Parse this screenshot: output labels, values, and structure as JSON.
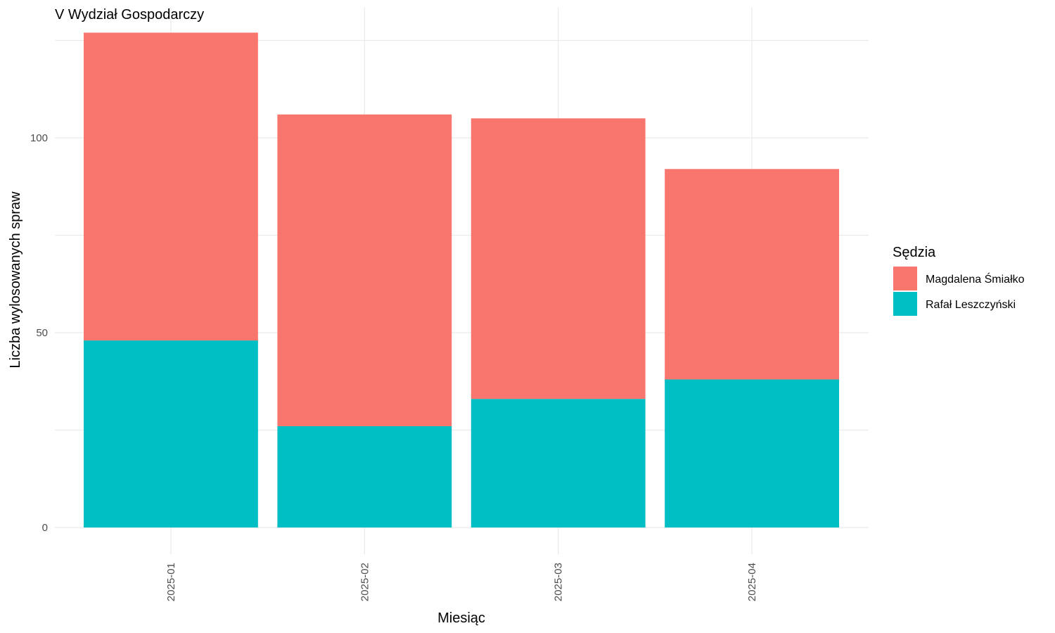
{
  "chart_data": {
    "type": "bar",
    "stacked": true,
    "title": "V Wydział Gospodarczy",
    "xlabel": "Miesiąc",
    "ylabel": "Liczba wylosowanych spraw",
    "categories": [
      "2025-01",
      "2025-02",
      "2025-03",
      "2025-04"
    ],
    "series": [
      {
        "name": "Rafał Leszczyński",
        "color": "#00BFC4",
        "values": [
          48,
          26,
          33,
          38
        ]
      },
      {
        "name": "Magdalena Śmiałko",
        "color": "#F8766D",
        "values": [
          79,
          80,
          72,
          54
        ]
      }
    ],
    "y_ticks": [
      "0",
      "50",
      "100"
    ],
    "ylim": [
      0,
      130
    ],
    "x_tick_orientation": "vertical",
    "grid": true,
    "legend": {
      "title": "Sędzia",
      "placement": "right",
      "order": [
        "Magdalena Śmiałko",
        "Rafał Leszczyński"
      ]
    }
  }
}
